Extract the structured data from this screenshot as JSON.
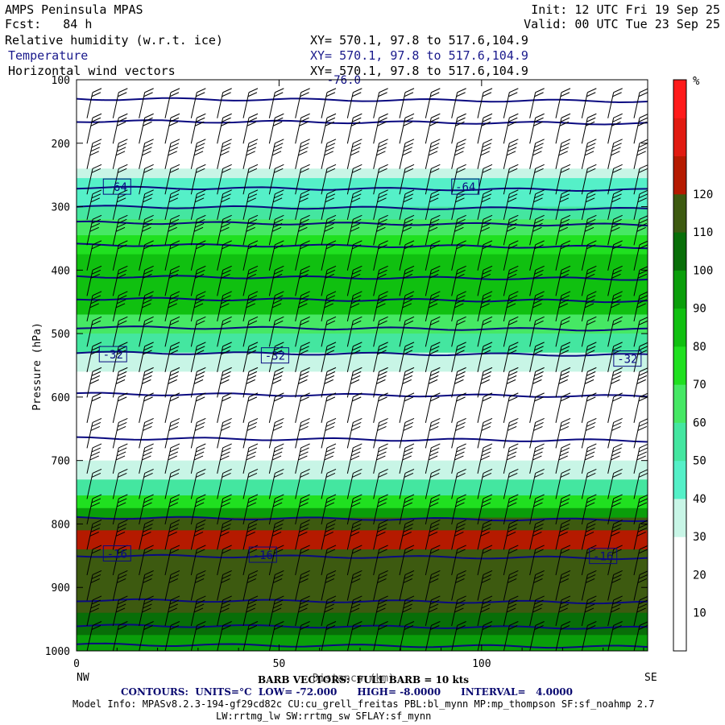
{
  "header": {
    "title": "AMPS Peninsula MPAS",
    "fcst": "Fcst:   84 h",
    "init": "Init: 12 UTC Fri 19 Sep 25",
    "valid": "Valid: 00 UTC Tue 23 Sep 25",
    "field_rh": "Relative humidity (w.r.t. ice)",
    "field_temp": "Temperature",
    "field_wind": "Horizontal wind vectors",
    "xy_rh": "XY= 570.1, 97.8 to 517.6,104.9",
    "xy_temp": "XY= 570.1, 97.8 to 517.6,104.9",
    "xy_wind": "XY= 570.1, 97.8 to 517.6,104.9"
  },
  "footer": {
    "barb_note": "BARB VECTORS:  FULL BARB = 10 kts",
    "distance_label": "Distance (km)",
    "contours": "CONTOURS:  UNITS=°C  LOW= -72.000      HIGH= -8.0000      INTERVAL=   4.0000",
    "model_info_1": "Model Info: MPASv8.2.3-194-gf29cd82c CU:cu_grell_freitas PBL:bl_mynn MP:mp_thompson SF:sf_noahmp 2.7",
    "model_info_2": "LW:rrtmg_lw SW:rrtmg_sw SFLAY:sf_mynn"
  },
  "colors": {
    "bands": [
      "#ffffff",
      "#ffffff",
      "#ffffff",
      "#c8f5e6",
      "#55f0c8",
      "#44e6a0",
      "#46e864",
      "#20e020",
      "#10c010",
      "#0a9e0a",
      "#086e08",
      "#3d5a10",
      "#b51a00",
      "#e11a10",
      "#ff1a1a"
    ],
    "contour": "#0a0a80"
  },
  "chart_data": {
    "type": "heatmap",
    "ylabel": "Pressure (hPa)",
    "xlabel": "Distance (km)",
    "x_endpoints": [
      "NW",
      "SE"
    ],
    "x_range": [
      0,
      141
    ],
    "y_range": [
      1000,
      100
    ],
    "y_scale": "linear",
    "x_ticks": [
      0,
      50,
      100
    ],
    "y_ticks": [
      100,
      200,
      300,
      400,
      500,
      600,
      700,
      800,
      900,
      1000
    ],
    "colorbar": {
      "unit": "%",
      "levels": [
        10,
        20,
        30,
        40,
        50,
        60,
        70,
        80,
        90,
        100,
        110,
        120
      ]
    },
    "rh_layers": [
      {
        "p_top": 100,
        "p_bottom": 140,
        "rh": 15
      },
      {
        "p_top": 140,
        "p_bottom": 240,
        "rh": 15
      },
      {
        "p_top": 240,
        "p_bottom": 255,
        "rh": 35
      },
      {
        "p_top": 255,
        "p_bottom": 300,
        "rh": 45
      },
      {
        "p_top": 300,
        "p_bottom": 320,
        "rh": 55
      },
      {
        "p_top": 320,
        "p_bottom": 345,
        "rh": 65
      },
      {
        "p_top": 345,
        "p_bottom": 375,
        "rh": 75
      },
      {
        "p_top": 375,
        "p_bottom": 420,
        "rh": 85
      },
      {
        "p_top": 420,
        "p_bottom": 470,
        "rh": 80
      },
      {
        "p_top": 470,
        "p_bottom": 500,
        "rh": 65
      },
      {
        "p_top": 500,
        "p_bottom": 530,
        "rh": 55
      },
      {
        "p_top": 530,
        "p_bottom": 560,
        "rh": 35
      },
      {
        "p_top": 560,
        "p_bottom": 700,
        "rh": 15
      },
      {
        "p_top": 700,
        "p_bottom": 730,
        "rh": 35
      },
      {
        "p_top": 730,
        "p_bottom": 755,
        "rh": 50
      },
      {
        "p_top": 755,
        "p_bottom": 775,
        "rh": 70
      },
      {
        "p_top": 775,
        "p_bottom": 790,
        "rh": 95
      },
      {
        "p_top": 790,
        "p_bottom": 810,
        "rh": 115
      },
      {
        "p_top": 810,
        "p_bottom": 840,
        "rh": 125
      },
      {
        "p_top": 840,
        "p_bottom": 940,
        "rh": 115
      },
      {
        "p_top": 940,
        "p_bottom": 975,
        "rh": 105
      },
      {
        "p_top": 975,
        "p_bottom": 1000,
        "rh": 95
      }
    ],
    "temperature_contours": [
      {
        "p": 130
      },
      {
        "p": 165
      },
      {
        "p": 270
      },
      {
        "p": 300
      },
      {
        "p": 325
      },
      {
        "p": 360
      },
      {
        "p": 410
      },
      {
        "p": 445
      },
      {
        "p": 490
      },
      {
        "p": 530
      },
      {
        "p": 595
      },
      {
        "p": 665
      },
      {
        "p": 790
      },
      {
        "p": 850
      },
      {
        "p": 920
      },
      {
        "p": 960
      },
      {
        "p": 990
      }
    ],
    "contour_labels": [
      {
        "text": "-76.0",
        "x": 66,
        "p": 100
      },
      {
        "text": "-64",
        "x": 10,
        "p": 269
      },
      {
        "text": "-64",
        "x": 96,
        "p": 269
      },
      {
        "text": "-32",
        "x": 9,
        "p": 533
      },
      {
        "text": "-32",
        "x": 49,
        "p": 535
      },
      {
        "text": "-32",
        "x": 136,
        "p": 540
      },
      {
        "text": "-16",
        "x": 10,
        "p": 847
      },
      {
        "text": "-16",
        "x": 46,
        "p": 849
      },
      {
        "text": "-16",
        "x": 130,
        "p": 851
      }
    ],
    "barb_columns": 22,
    "barb_levels_hpa": [
      120,
      160,
      200,
      240,
      280,
      320,
      360,
      400,
      440,
      480,
      520,
      560,
      600,
      640,
      680,
      720,
      760,
      800,
      840,
      880,
      920,
      960
    ]
  }
}
